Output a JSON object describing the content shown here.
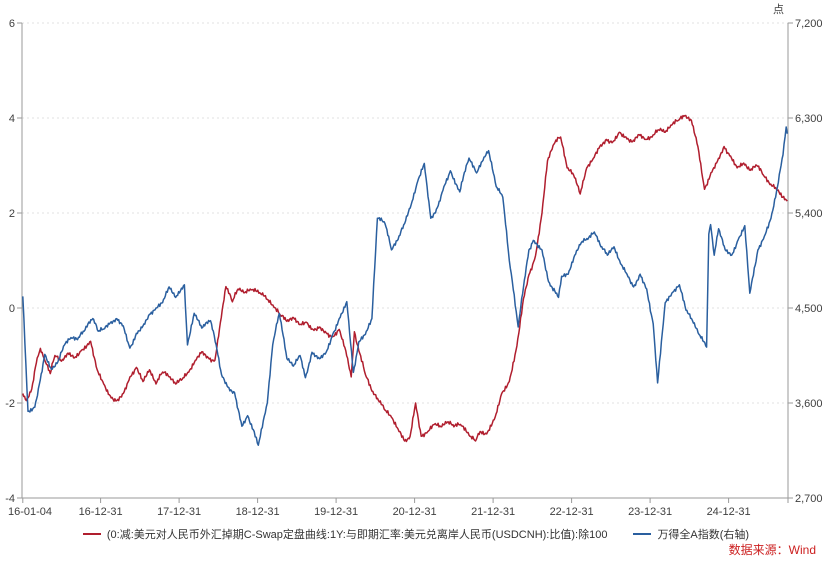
{
  "source_note": "数据来源：Wind",
  "colors": {
    "red_line": "#b01e2e",
    "blue_line": "#2a5f9f",
    "axis_line": "#9a9a9a",
    "grid_line": "#d9d9d9",
    "tick_text": "#404040",
    "source_text": "#cc1f1f"
  },
  "chart_data": {
    "type": "line",
    "title": "",
    "grid": "horizontal dashed at left-axis tick levels",
    "legend_position": "bottom",
    "left_axis": {
      "min": -4,
      "max": 6,
      "ticks": [
        6,
        4,
        2,
        0,
        -2,
        -4
      ]
    },
    "right_axis": {
      "unit": "点",
      "min": 2700,
      "max": 7200,
      "ticks": [
        7200,
        6300,
        5400,
        4500,
        3600,
        2700
      ]
    },
    "x_axis": {
      "start_label": "16-01-04",
      "tick_labels": [
        "16-01-04",
        "16-12-31",
        "17-12-31",
        "18-12-31",
        "19-12-31",
        "20-12-31",
        "21-12-31",
        "22-12-31",
        "23-12-31",
        "24-12-31"
      ]
    },
    "series": [
      {
        "name": "(0:减:美元对人民币外汇掉期C-Swap定盘曲线:1Y:与即期汇率:美元兑离岸人民币(USDCNH):比值):除100",
        "axis": "left",
        "color": "#b01e2e",
        "points": [
          [
            "16-01-04",
            -1.8
          ],
          [
            "16-01-20",
            -1.95
          ],
          [
            "16-02-15",
            -1.7
          ],
          [
            "16-03-10",
            -1.05
          ],
          [
            "16-03-25",
            -0.85
          ],
          [
            "16-04-15",
            -1.1
          ],
          [
            "16-05-10",
            -1.38
          ],
          [
            "16-06-01",
            -1.0
          ],
          [
            "16-07-01",
            -1.12
          ],
          [
            "16-08-01",
            -0.95
          ],
          [
            "16-09-01",
            -1.05
          ],
          [
            "16-10-01",
            -0.9
          ],
          [
            "16-11-15",
            -0.7
          ],
          [
            "16-12-15",
            -1.3
          ],
          [
            "17-01-15",
            -1.6
          ],
          [
            "17-02-15",
            -1.85
          ],
          [
            "17-03-15",
            -1.95
          ],
          [
            "17-04-15",
            -1.8
          ],
          [
            "17-05-15",
            -1.45
          ],
          [
            "17-06-15",
            -1.25
          ],
          [
            "17-07-15",
            -1.55
          ],
          [
            "17-08-15",
            -1.3
          ],
          [
            "17-09-15",
            -1.6
          ],
          [
            "17-10-15",
            -1.35
          ],
          [
            "17-11-15",
            -1.45
          ],
          [
            "17-12-15",
            -1.6
          ],
          [
            "18-01-15",
            -1.5
          ],
          [
            "18-02-15",
            -1.35
          ],
          [
            "18-03-15",
            -1.1
          ],
          [
            "18-04-15",
            -0.92
          ],
          [
            "18-05-15",
            -1.05
          ],
          [
            "18-06-15",
            -1.1
          ],
          [
            "18-07-10",
            -0.3
          ],
          [
            "18-08-05",
            0.45
          ],
          [
            "18-09-05",
            0.13
          ],
          [
            "18-10-01",
            0.4
          ],
          [
            "18-11-01",
            0.32
          ],
          [
            "18-12-01",
            0.38
          ],
          [
            "19-01-15",
            0.3
          ],
          [
            "19-02-15",
            0.18
          ],
          [
            "19-03-15",
            0.02
          ],
          [
            "19-04-15",
            -0.15
          ],
          [
            "19-05-15",
            -0.28
          ],
          [
            "19-06-15",
            -0.2
          ],
          [
            "19-07-15",
            -0.35
          ],
          [
            "19-08-15",
            -0.3
          ],
          [
            "19-09-15",
            -0.45
          ],
          [
            "19-10-15",
            -0.4
          ],
          [
            "19-11-15",
            -0.52
          ],
          [
            "19-12-15",
            -0.6
          ],
          [
            "20-01-15",
            -0.45
          ],
          [
            "20-02-15",
            -0.9
          ],
          [
            "20-03-10",
            -1.45
          ],
          [
            "20-03-25",
            -0.5
          ],
          [
            "20-04-15",
            -0.9
          ],
          [
            "20-05-15",
            -1.4
          ],
          [
            "20-06-15",
            -1.75
          ],
          [
            "20-07-15",
            -1.95
          ],
          [
            "20-08-15",
            -2.15
          ],
          [
            "20-09-15",
            -2.3
          ],
          [
            "20-10-15",
            -2.55
          ],
          [
            "20-11-15",
            -2.8
          ],
          [
            "20-12-10",
            -2.7
          ],
          [
            "21-01-05",
            -2.0
          ],
          [
            "21-02-01",
            -2.7
          ],
          [
            "21-03-01",
            -2.6
          ],
          [
            "21-04-01",
            -2.45
          ],
          [
            "21-05-01",
            -2.5
          ],
          [
            "21-06-01",
            -2.4
          ],
          [
            "21-07-01",
            -2.5
          ],
          [
            "21-08-01",
            -2.45
          ],
          [
            "21-09-15",
            -2.7
          ],
          [
            "21-10-10",
            -2.8
          ],
          [
            "21-11-01",
            -2.6
          ],
          [
            "21-12-01",
            -2.65
          ],
          [
            "22-01-10",
            -2.3
          ],
          [
            "22-02-10",
            -1.8
          ],
          [
            "22-03-15",
            -1.55
          ],
          [
            "22-04-20",
            -0.8
          ],
          [
            "22-05-20",
            0.2
          ],
          [
            "22-06-15",
            0.7
          ],
          [
            "22-07-15",
            1.1
          ],
          [
            "22-08-15",
            2.0
          ],
          [
            "22-09-10",
            3.1
          ],
          [
            "22-10-10",
            3.45
          ],
          [
            "22-11-10",
            3.6
          ],
          [
            "22-12-10",
            2.95
          ],
          [
            "23-01-10",
            2.8
          ],
          [
            "23-02-10",
            2.4
          ],
          [
            "23-03-10",
            2.95
          ],
          [
            "23-04-10",
            3.15
          ],
          [
            "23-05-10",
            3.4
          ],
          [
            "23-06-10",
            3.55
          ],
          [
            "23-07-10",
            3.5
          ],
          [
            "23-08-10",
            3.7
          ],
          [
            "23-09-10",
            3.6
          ],
          [
            "23-10-10",
            3.5
          ],
          [
            "23-11-10",
            3.65
          ],
          [
            "23-12-10",
            3.55
          ],
          [
            "24-01-10",
            3.6
          ],
          [
            "24-02-10",
            3.75
          ],
          [
            "24-03-10",
            3.7
          ],
          [
            "24-04-10",
            3.85
          ],
          [
            "24-05-10",
            3.95
          ],
          [
            "24-06-10",
            4.05
          ],
          [
            "24-07-10",
            3.95
          ],
          [
            "24-08-10",
            3.4
          ],
          [
            "24-09-10",
            2.5
          ],
          [
            "24-10-10",
            2.85
          ],
          [
            "24-11-10",
            3.1
          ],
          [
            "24-12-10",
            3.4
          ],
          [
            "25-01-10",
            3.2
          ],
          [
            "25-02-10",
            2.95
          ],
          [
            "25-03-10",
            3.05
          ],
          [
            "25-04-10",
            2.9
          ],
          [
            "25-05-10",
            3.0
          ],
          [
            "25-06-10",
            2.8
          ],
          [
            "25-07-10",
            2.6
          ],
          [
            "25-08-10",
            2.5
          ],
          [
            "25-09-30",
            2.25
          ]
        ]
      },
      {
        "name": "万得全A指数(右轴)",
        "axis": "right",
        "color": "#2a5f9f",
        "points": [
          [
            "16-01-04",
            4610
          ],
          [
            "16-01-28",
            3520
          ],
          [
            "16-02-29",
            3560
          ],
          [
            "16-03-20",
            3780
          ],
          [
            "16-04-15",
            4060
          ],
          [
            "16-05-15",
            3920
          ],
          [
            "16-06-15",
            3990
          ],
          [
            "16-07-15",
            4150
          ],
          [
            "16-08-15",
            4220
          ],
          [
            "16-09-15",
            4200
          ],
          [
            "16-10-15",
            4280
          ],
          [
            "16-11-25",
            4400
          ],
          [
            "16-12-20",
            4280
          ],
          [
            "17-01-15",
            4300
          ],
          [
            "17-02-15",
            4360
          ],
          [
            "17-03-15",
            4400
          ],
          [
            "17-04-15",
            4330
          ],
          [
            "17-05-15",
            4120
          ],
          [
            "17-06-15",
            4260
          ],
          [
            "17-07-15",
            4330
          ],
          [
            "17-08-15",
            4440
          ],
          [
            "17-09-15",
            4500
          ],
          [
            "17-10-15",
            4550
          ],
          [
            "17-11-15",
            4700
          ],
          [
            "17-12-15",
            4600
          ],
          [
            "18-01-25",
            4720
          ],
          [
            "18-02-09",
            4150
          ],
          [
            "18-03-10",
            4450
          ],
          [
            "18-04-15",
            4310
          ],
          [
            "18-05-25",
            4380
          ],
          [
            "18-06-25",
            4100
          ],
          [
            "18-07-15",
            3870
          ],
          [
            "18-08-15",
            3750
          ],
          [
            "18-09-15",
            3700
          ],
          [
            "18-10-19",
            3380
          ],
          [
            "18-11-15",
            3480
          ],
          [
            "18-12-15",
            3330
          ],
          [
            "19-01-04",
            3200
          ],
          [
            "19-02-15",
            3600
          ],
          [
            "19-03-10",
            4150
          ],
          [
            "19-04-10",
            4450
          ],
          [
            "19-05-15",
            4020
          ],
          [
            "19-06-15",
            3950
          ],
          [
            "19-07-15",
            4050
          ],
          [
            "19-08-10",
            3840
          ],
          [
            "19-09-10",
            4080
          ],
          [
            "19-10-15",
            4020
          ],
          [
            "19-11-15",
            4080
          ],
          [
            "19-12-15",
            4250
          ],
          [
            "20-01-15",
            4400
          ],
          [
            "20-02-20",
            4560
          ],
          [
            "20-03-20",
            3890
          ],
          [
            "20-04-15",
            4180
          ],
          [
            "20-05-15",
            4250
          ],
          [
            "20-06-15",
            4400
          ],
          [
            "20-07-10",
            5350
          ],
          [
            "20-08-15",
            5300
          ],
          [
            "20-09-15",
            5050
          ],
          [
            "20-10-15",
            5150
          ],
          [
            "20-11-15",
            5300
          ],
          [
            "20-12-15",
            5480
          ],
          [
            "21-01-15",
            5700
          ],
          [
            "21-02-15",
            5870
          ],
          [
            "21-03-15",
            5350
          ],
          [
            "21-04-15",
            5450
          ],
          [
            "21-05-15",
            5650
          ],
          [
            "21-06-15",
            5800
          ],
          [
            "21-07-28",
            5600
          ],
          [
            "21-08-15",
            5750
          ],
          [
            "21-09-10",
            5920
          ],
          [
            "21-10-15",
            5780
          ],
          [
            "21-11-15",
            5900
          ],
          [
            "21-12-10",
            5990
          ],
          [
            "22-01-15",
            5650
          ],
          [
            "22-02-15",
            5550
          ],
          [
            "22-03-15",
            4950
          ],
          [
            "22-04-26",
            4320
          ],
          [
            "22-05-20",
            4700
          ],
          [
            "22-06-15",
            5050
          ],
          [
            "22-07-05",
            5140
          ],
          [
            "22-08-15",
            5050
          ],
          [
            "22-09-15",
            4750
          ],
          [
            "22-10-31",
            4600
          ],
          [
            "22-11-15",
            4800
          ],
          [
            "22-12-15",
            4820
          ],
          [
            "23-01-15",
            5000
          ],
          [
            "23-02-15",
            5120
          ],
          [
            "23-03-15",
            5150
          ],
          [
            "23-04-15",
            5220
          ],
          [
            "23-05-15",
            5080
          ],
          [
            "23-06-15",
            5000
          ],
          [
            "23-07-15",
            5080
          ],
          [
            "23-08-15",
            4920
          ],
          [
            "23-09-15",
            4820
          ],
          [
            "23-10-15",
            4700
          ],
          [
            "23-11-15",
            4820
          ],
          [
            "23-12-15",
            4680
          ],
          [
            "24-01-15",
            4350
          ],
          [
            "24-02-05",
            3790
          ],
          [
            "24-03-10",
            4550
          ],
          [
            "24-04-15",
            4650
          ],
          [
            "24-05-15",
            4720
          ],
          [
            "24-06-15",
            4480
          ],
          [
            "24-07-15",
            4380
          ],
          [
            "24-08-15",
            4250
          ],
          [
            "24-09-20",
            4130
          ],
          [
            "24-09-30",
            5200
          ],
          [
            "24-10-08",
            5290
          ],
          [
            "24-10-25",
            5000
          ],
          [
            "24-11-15",
            5250
          ],
          [
            "24-12-15",
            5050
          ],
          [
            "25-01-15",
            5000
          ],
          [
            "25-02-15",
            5150
          ],
          [
            "25-03-15",
            5280
          ],
          [
            "25-04-08",
            4640
          ],
          [
            "25-05-15",
            5050
          ],
          [
            "25-06-15",
            5180
          ],
          [
            "25-07-15",
            5350
          ],
          [
            "25-08-15",
            5650
          ],
          [
            "25-09-10",
            5950
          ],
          [
            "25-09-25",
            6215
          ],
          [
            "25-09-30",
            6150
          ]
        ]
      }
    ]
  }
}
